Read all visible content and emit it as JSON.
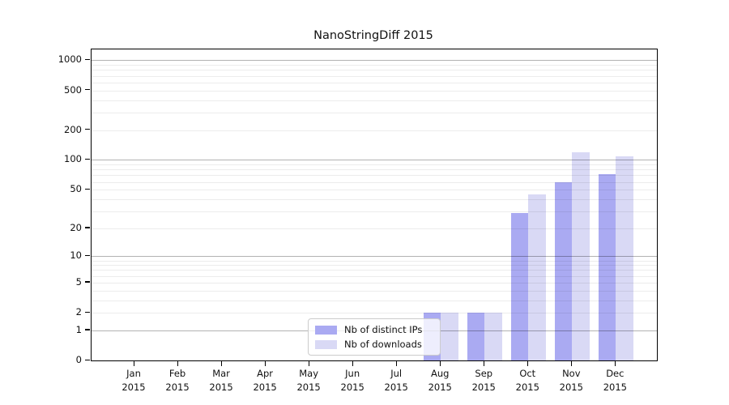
{
  "chart_data": {
    "type": "bar",
    "title": "NanoStringDiff 2015",
    "year_label": "2015",
    "categories": [
      "Jan",
      "Feb",
      "Mar",
      "Apr",
      "May",
      "Jun",
      "Jul",
      "Aug",
      "Sep",
      "Oct",
      "Nov",
      "Dec"
    ],
    "series": [
      {
        "name": "Nb of distinct IPs",
        "color": "#aaaaf2",
        "values": [
          0,
          0,
          0,
          0,
          0,
          0,
          0,
          2,
          2,
          29,
          60,
          72
        ]
      },
      {
        "name": "Nb of downloads",
        "color": "#d9d9f5",
        "values": [
          0,
          0,
          0,
          0,
          0,
          0,
          0,
          2,
          2,
          45,
          120,
          108
        ]
      }
    ],
    "y_axis": {
      "scale": "log10(1+v)",
      "tick_values": [
        0,
        1,
        2,
        5,
        10,
        20,
        50,
        100,
        200,
        500,
        1000
      ],
      "major_gridline_values": [
        1,
        10,
        100,
        1000
      ],
      "minor_gridline_values": [
        2,
        3,
        4,
        5,
        6,
        7,
        8,
        9,
        20,
        30,
        40,
        50,
        60,
        70,
        80,
        90,
        200,
        300,
        400,
        500,
        600,
        700,
        800,
        900
      ]
    },
    "x_axis": {
      "label_format": "month over year"
    },
    "legend": {
      "position": "lower center"
    },
    "grid": true,
    "colors": {
      "frame": "#000000",
      "minor_grid": "#ececec",
      "major_grid": "#b3b3b3"
    }
  }
}
